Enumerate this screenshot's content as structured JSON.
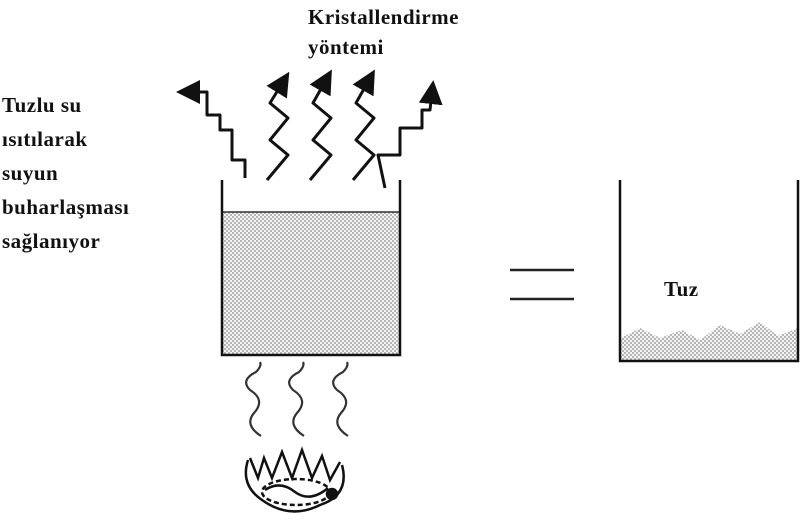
{
  "title_lines": [
    "Kristallendirme",
    "yöntemi"
  ],
  "process_lines": [
    "Tuzlu su",
    "ısıtılarak",
    "suyun",
    "buharlaşması",
    "sağlanıyor"
  ],
  "result_label": "Tuz",
  "colors": {
    "ink": "#111111",
    "fill_dots": "#9a9a9a",
    "background": "#ffffff"
  }
}
